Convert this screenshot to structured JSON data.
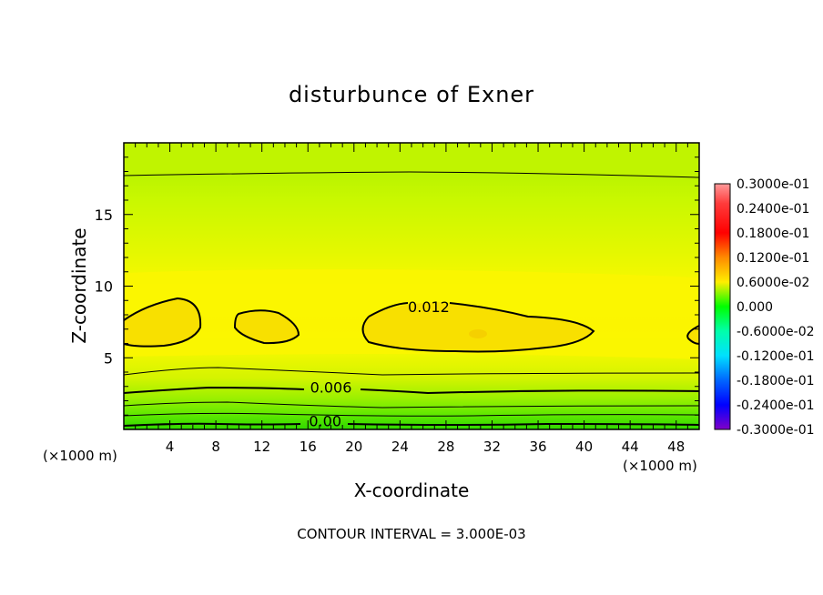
{
  "chart_data": {
    "type": "heatmap",
    "title": "disturbunce of Exner",
    "xlabel": "X-coordinate",
    "ylabel": "Z-coordinate",
    "x_unit": "(×1000 m)",
    "y_unit": "(×1000 m)",
    "xlim": [
      0,
      50
    ],
    "ylim": [
      0,
      20
    ],
    "x_ticks": [
      4,
      8,
      12,
      16,
      20,
      24,
      28,
      32,
      36,
      40,
      44,
      48
    ],
    "x_tick_labels": [
      "4",
      "8",
      "12",
      "16",
      "20",
      "24",
      "28",
      "32",
      "36",
      "40",
      "44",
      "48"
    ],
    "y_ticks": [
      5,
      10,
      15
    ],
    "y_tick_labels": [
      "5",
      "10",
      "15"
    ],
    "footer": "CONTOUR INTERVAL = 3.000E-03",
    "contour_interval": 0.003,
    "contour_labels": [
      {
        "text": "0.012",
        "x": 26.5,
        "z": 8.5
      },
      {
        "text": "0.006",
        "x": 18.0,
        "z": 2.9
      },
      {
        "text": "0.00",
        "x": 17.5,
        "z": 0.55
      }
    ],
    "colorbar": {
      "min": -0.03,
      "max": 0.03,
      "labels": [
        "0.3000e-01",
        "0.2400e-01",
        "0.1800e-01",
        "0.1200e-01",
        "0.6000e-02",
        "0.000",
        "-0.6000e-02",
        "-0.1200e-01",
        "-0.1800e-01",
        "-0.2400e-01",
        "-0.3000e-01"
      ],
      "colors": [
        "#ff9a9a",
        "#ff3b3b",
        "#ff0000",
        "#ff8a00",
        "#ffd700",
        "#ffff00",
        "#ccff00",
        "#7cff00",
        "#00ff00",
        "#00ff9a",
        "#00ffff",
        "#00b0ff",
        "#0055ff",
        "#0000ff",
        "#3300ff",
        "#8000c8"
      ]
    }
  }
}
